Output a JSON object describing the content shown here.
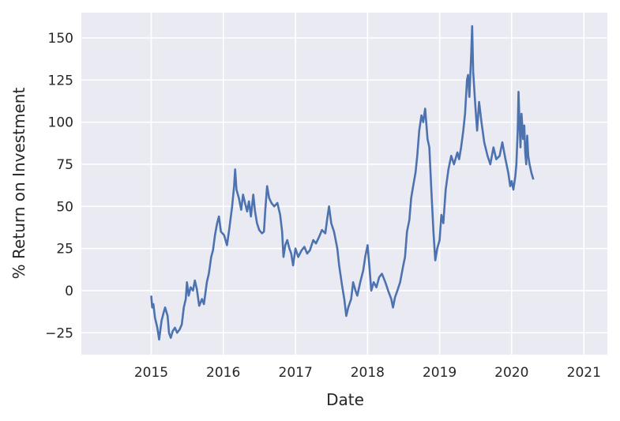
{
  "chart_data": {
    "type": "line",
    "title": "",
    "xlabel": "Date",
    "ylabel": "% Return on Investment",
    "x_ticks": [
      "2015",
      "2016",
      "2017",
      "2018",
      "2019",
      "2020",
      "2021"
    ],
    "y_ticks": [
      -25,
      0,
      25,
      50,
      75,
      100,
      125,
      150
    ],
    "xlim": [
      "2014-01-12",
      "2021-04-30"
    ],
    "ylim": [
      -38,
      165
    ],
    "grid": true,
    "background": "#eaeaf2",
    "grid_color": "#ffffff",
    "series": [
      {
        "color": "#4c72b0",
        "points": [
          [
            "2015-01-01",
            -3
          ],
          [
            "2015-01-06",
            -10
          ],
          [
            "2015-01-12",
            -8
          ],
          [
            "2015-01-20",
            -16
          ],
          [
            "2015-02-01",
            -22
          ],
          [
            "2015-02-10",
            -29
          ],
          [
            "2015-02-22",
            -18
          ],
          [
            "2015-03-05",
            -13
          ],
          [
            "2015-03-12",
            -10
          ],
          [
            "2015-03-25",
            -15
          ],
          [
            "2015-04-01",
            -25
          ],
          [
            "2015-04-10",
            -28
          ],
          [
            "2015-04-20",
            -24
          ],
          [
            "2015-05-01",
            -22
          ],
          [
            "2015-05-12",
            -25
          ],
          [
            "2015-05-25",
            -23
          ],
          [
            "2015-06-05",
            -20
          ],
          [
            "2015-06-15",
            -10
          ],
          [
            "2015-06-25",
            -5
          ],
          [
            "2015-07-01",
            5
          ],
          [
            "2015-07-10",
            -3
          ],
          [
            "2015-07-20",
            2
          ],
          [
            "2015-08-01",
            0
          ],
          [
            "2015-08-10",
            6
          ],
          [
            "2015-08-20",
            1
          ],
          [
            "2015-09-01",
            -9
          ],
          [
            "2015-09-15",
            -5
          ],
          [
            "2015-09-25",
            -8
          ],
          [
            "2015-10-10",
            5
          ],
          [
            "2015-10-20",
            10
          ],
          [
            "2015-11-01",
            20
          ],
          [
            "2015-11-10",
            24
          ],
          [
            "2015-11-20",
            33
          ],
          [
            "2015-12-01",
            40
          ],
          [
            "2015-12-10",
            44
          ],
          [
            "2015-12-20",
            35
          ],
          [
            "2016-01-05",
            33
          ],
          [
            "2016-01-20",
            27
          ],
          [
            "2016-02-01",
            37
          ],
          [
            "2016-02-15",
            50
          ],
          [
            "2016-02-25",
            62
          ],
          [
            "2016-03-01",
            72
          ],
          [
            "2016-03-08",
            60
          ],
          [
            "2016-03-20",
            55
          ],
          [
            "2016-04-01",
            48
          ],
          [
            "2016-04-10",
            57
          ],
          [
            "2016-04-20",
            52
          ],
          [
            "2016-05-01",
            47
          ],
          [
            "2016-05-10",
            53
          ],
          [
            "2016-05-20",
            44
          ],
          [
            "2016-06-01",
            57
          ],
          [
            "2016-06-10",
            47
          ],
          [
            "2016-06-20",
            40
          ],
          [
            "2016-07-01",
            36
          ],
          [
            "2016-07-15",
            34
          ],
          [
            "2016-07-25",
            35
          ],
          [
            "2016-08-01",
            48
          ],
          [
            "2016-08-10",
            62
          ],
          [
            "2016-08-20",
            55
          ],
          [
            "2016-09-01",
            52
          ],
          [
            "2016-09-15",
            50
          ],
          [
            "2016-10-01",
            52
          ],
          [
            "2016-10-15",
            45
          ],
          [
            "2016-10-25",
            35
          ],
          [
            "2016-11-01",
            20
          ],
          [
            "2016-11-10",
            27
          ],
          [
            "2016-11-20",
            30
          ],
          [
            "2016-12-01",
            25
          ],
          [
            "2016-12-10",
            22
          ],
          [
            "2016-12-20",
            15
          ],
          [
            "2017-01-01",
            25
          ],
          [
            "2017-01-15",
            20
          ],
          [
            "2017-02-01",
            24
          ],
          [
            "2017-02-15",
            26
          ],
          [
            "2017-03-01",
            22
          ],
          [
            "2017-03-15",
            24
          ],
          [
            "2017-04-01",
            30
          ],
          [
            "2017-04-15",
            28
          ],
          [
            "2017-05-01",
            32
          ],
          [
            "2017-05-15",
            36
          ],
          [
            "2017-06-01",
            34
          ],
          [
            "2017-06-10",
            42
          ],
          [
            "2017-06-20",
            50
          ],
          [
            "2017-07-01",
            40
          ],
          [
            "2017-07-15",
            35
          ],
          [
            "2017-08-01",
            25
          ],
          [
            "2017-08-10",
            15
          ],
          [
            "2017-08-25",
            3
          ],
          [
            "2017-09-05",
            -5
          ],
          [
            "2017-09-15",
            -15
          ],
          [
            "2017-09-25",
            -10
          ],
          [
            "2017-10-10",
            -5
          ],
          [
            "2017-10-20",
            5
          ],
          [
            "2017-11-01",
            0
          ],
          [
            "2017-11-10",
            -3
          ],
          [
            "2017-11-25",
            5
          ],
          [
            "2017-12-10",
            12
          ],
          [
            "2017-12-20",
            20
          ],
          [
            "2018-01-01",
            27
          ],
          [
            "2018-01-10",
            15
          ],
          [
            "2018-01-20",
            0
          ],
          [
            "2018-02-01",
            5
          ],
          [
            "2018-02-15",
            2
          ],
          [
            "2018-03-01",
            8
          ],
          [
            "2018-03-15",
            10
          ],
          [
            "2018-04-01",
            5
          ],
          [
            "2018-04-15",
            0
          ],
          [
            "2018-05-01",
            -5
          ],
          [
            "2018-05-10",
            -10
          ],
          [
            "2018-05-20",
            -4
          ],
          [
            "2018-06-01",
            0
          ],
          [
            "2018-06-15",
            5
          ],
          [
            "2018-07-01",
            15
          ],
          [
            "2018-07-10",
            20
          ],
          [
            "2018-07-20",
            35
          ],
          [
            "2018-08-01",
            42
          ],
          [
            "2018-08-10",
            55
          ],
          [
            "2018-08-20",
            62
          ],
          [
            "2018-09-01",
            70
          ],
          [
            "2018-09-10",
            80
          ],
          [
            "2018-09-20",
            95
          ],
          [
            "2018-10-01",
            104
          ],
          [
            "2018-10-10",
            100
          ],
          [
            "2018-10-20",
            108
          ],
          [
            "2018-11-01",
            90
          ],
          [
            "2018-11-10",
            85
          ],
          [
            "2018-11-20",
            60
          ],
          [
            "2018-12-01",
            35
          ],
          [
            "2018-12-10",
            18
          ],
          [
            "2018-12-20",
            25
          ],
          [
            "2019-01-01",
            30
          ],
          [
            "2019-01-10",
            45
          ],
          [
            "2019-01-20",
            40
          ],
          [
            "2019-02-01",
            60
          ],
          [
            "2019-02-15",
            72
          ],
          [
            "2019-03-01",
            80
          ],
          [
            "2019-03-15",
            75
          ],
          [
            "2019-04-01",
            82
          ],
          [
            "2019-04-10",
            78
          ],
          [
            "2019-04-20",
            85
          ],
          [
            "2019-05-01",
            95
          ],
          [
            "2019-05-10",
            105
          ],
          [
            "2019-05-20",
            125
          ],
          [
            "2019-05-25",
            128
          ],
          [
            "2019-06-01",
            115
          ],
          [
            "2019-06-10",
            140
          ],
          [
            "2019-06-15",
            157
          ],
          [
            "2019-06-20",
            130
          ],
          [
            "2019-07-01",
            110
          ],
          [
            "2019-07-10",
            95
          ],
          [
            "2019-07-20",
            112
          ],
          [
            "2019-08-01",
            100
          ],
          [
            "2019-08-15",
            88
          ],
          [
            "2019-09-01",
            80
          ],
          [
            "2019-09-15",
            75
          ],
          [
            "2019-10-01",
            85
          ],
          [
            "2019-10-15",
            78
          ],
          [
            "2019-11-01",
            80
          ],
          [
            "2019-11-15",
            88
          ],
          [
            "2019-12-01",
            78
          ],
          [
            "2019-12-15",
            70
          ],
          [
            "2019-12-25",
            62
          ],
          [
            "2020-01-01",
            65
          ],
          [
            "2020-01-10",
            60
          ],
          [
            "2020-01-20",
            68
          ],
          [
            "2020-01-25",
            75
          ],
          [
            "2020-02-01",
            95
          ],
          [
            "2020-02-05",
            118
          ],
          [
            "2020-02-10",
            100
          ],
          [
            "2020-02-15",
            85
          ],
          [
            "2020-02-20",
            105
          ],
          [
            "2020-02-28",
            90
          ],
          [
            "2020-03-05",
            98
          ],
          [
            "2020-03-10",
            82
          ],
          [
            "2020-03-15",
            75
          ],
          [
            "2020-03-20",
            92
          ],
          [
            "2020-03-25",
            80
          ],
          [
            "2020-04-01",
            75
          ],
          [
            "2020-04-10",
            70
          ],
          [
            "2020-04-20",
            66
          ]
        ]
      }
    ]
  }
}
